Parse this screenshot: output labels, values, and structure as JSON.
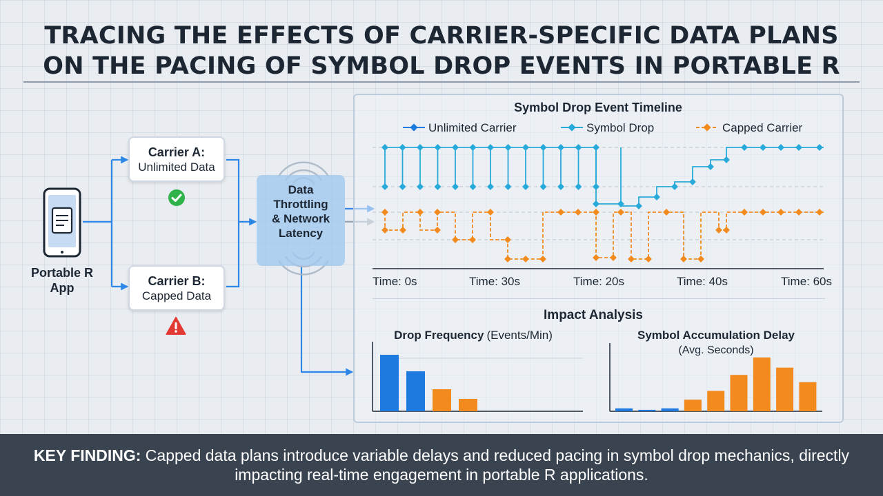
{
  "title": {
    "line1": "TRACING THE EFFECTS OF CARRIER-SPECIFIC DATA PLANS",
    "line2": "ON THE PACING OF SYMBOL DROP EVENTS IN PORTABLE R"
  },
  "app": {
    "label_line1": "Portable R",
    "label_line2": "App",
    "icon": "smartphone-icon"
  },
  "carriers": [
    {
      "title": "Carrier A:",
      "plan": "Unlimited Data",
      "status_icon": "check-circle-icon",
      "status_color": "#2fb24a"
    },
    {
      "title": "Carrier B:",
      "plan": "Capped Data",
      "status_icon": "warning-triangle-icon",
      "status_color": "#e23a32"
    }
  ],
  "throttle": {
    "line1": "Data",
    "line2": "Throttling",
    "line3": "& Network",
    "line4": "Latency",
    "icon": "signal-rings-icon"
  },
  "colors": {
    "blue": "#1f7ae0",
    "cyan": "#27a9d9",
    "orange": "#f28a1e",
    "connector": "#2e86e6",
    "gray_arrow": "#9aa6b4"
  },
  "chart_data": [
    {
      "type": "line",
      "title": "Symbol Drop Event Timeline",
      "legend_position": "top",
      "series": [
        {
          "name": "Unlimited Carrier",
          "color": "#1f7ae0",
          "style": "solid"
        },
        {
          "name": "Symbol Drop",
          "color": "#27a9d9",
          "style": "solid"
        },
        {
          "name": "Capped Carrier",
          "color": "#f28a1e",
          "style": "dashed"
        }
      ],
      "x_tick_labels": [
        "Time: 0s",
        "Time: 30s",
        "Time: 20s",
        "Time: 40s",
        "Time: 60s"
      ],
      "grid": true
    },
    {
      "type": "bar",
      "section_title": "Impact Analysis",
      "title": "Drop Frequency",
      "subtitle": "(Events/Min)",
      "values": [
        4.1,
        2.9,
        1.6,
        0.9
      ],
      "colors": [
        "#1f7ae0",
        "#1f7ae0",
        "#f28a1e",
        "#f28a1e"
      ],
      "ylim": [
        0,
        5
      ]
    },
    {
      "type": "bar",
      "title": "Symbol Accumulation Delay",
      "subtitle": "(Avg. Seconds)",
      "values": [
        0.2,
        0.1,
        0.2,
        0.8,
        1.4,
        2.5,
        3.7,
        3.0,
        2.0
      ],
      "colors": [
        "#1f7ae0",
        "#1f7ae0",
        "#1f7ae0",
        "#f28a1e",
        "#f28a1e",
        "#f28a1e",
        "#f28a1e",
        "#f28a1e",
        "#f28a1e"
      ],
      "ylim": [
        0,
        4.5
      ]
    }
  ],
  "key_finding": {
    "label": "KEY FINDING:",
    "text": " Capped data plans introduce variable delays and reduced pacing in symbol drop mechanics, directly impacting real-time engagement in portable R applications."
  }
}
